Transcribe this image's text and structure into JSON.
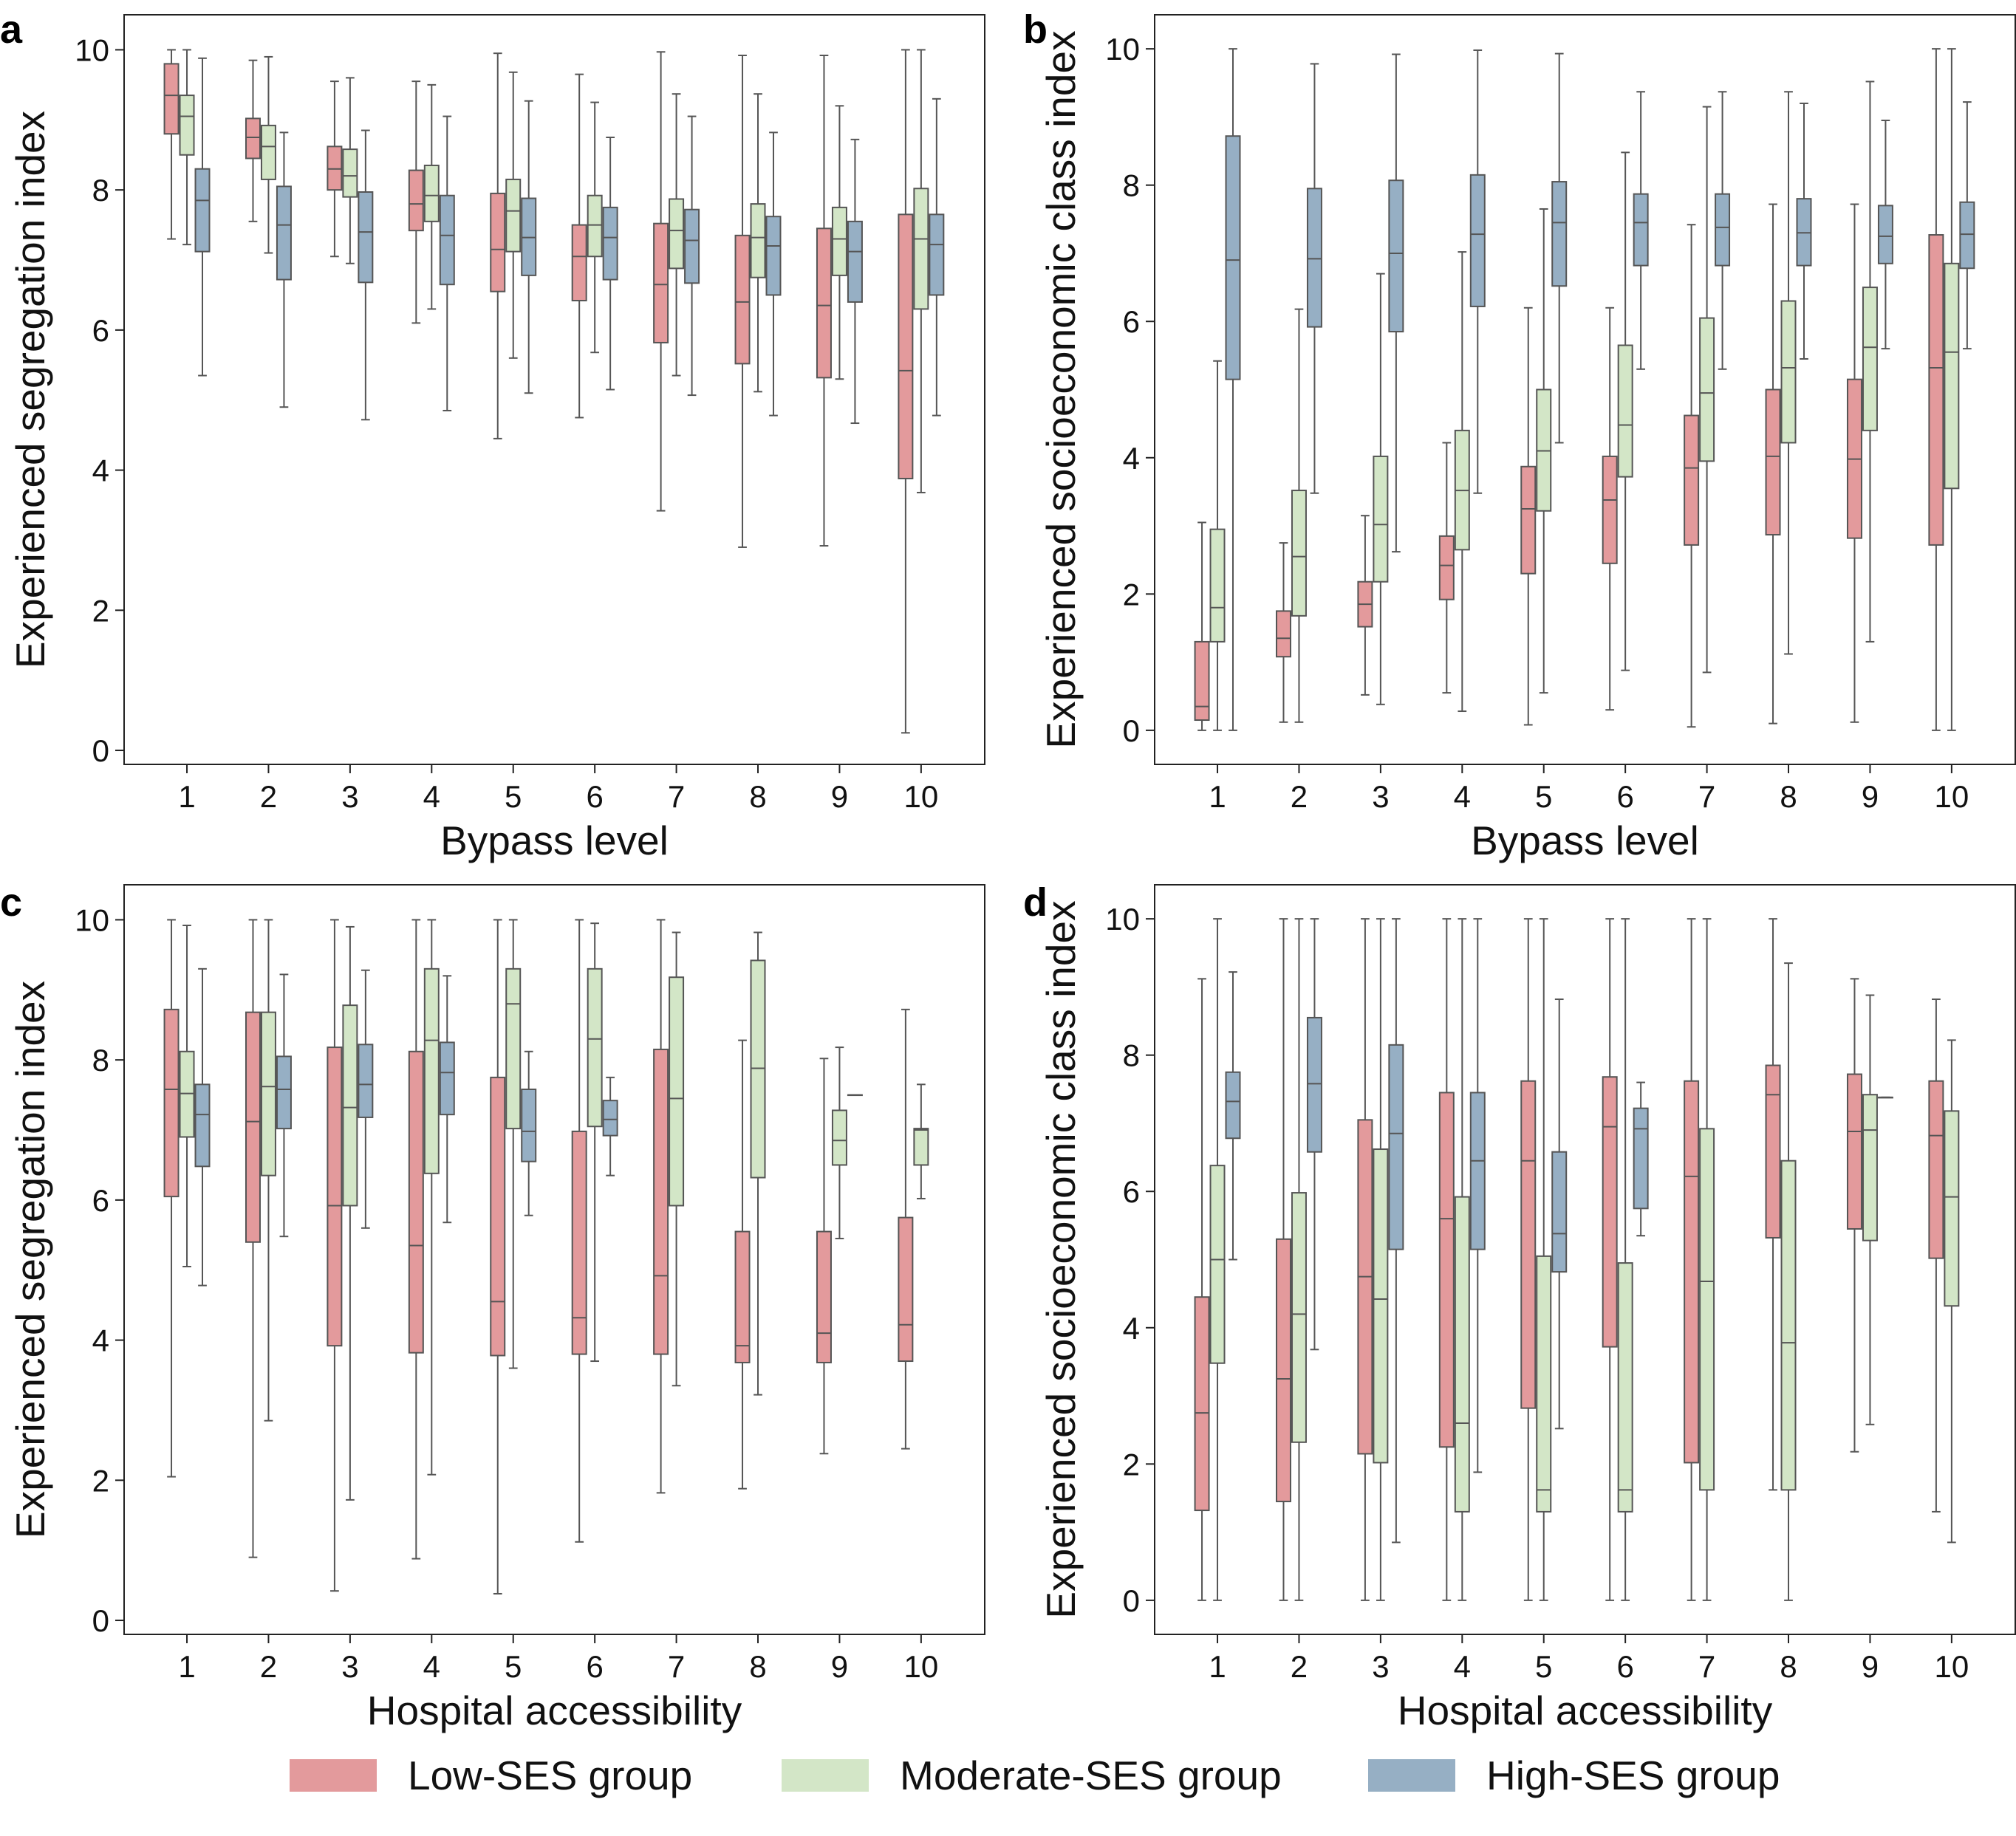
{
  "colors": {
    "low": "#e39a9c",
    "moderate": "#d3e6c7",
    "high": "#96afc4",
    "edge": "#555555"
  },
  "legend": [
    {
      "key": "low",
      "label": "Low-SES group"
    },
    {
      "key": "moderate",
      "label": "Moderate-SES group"
    },
    {
      "key": "high",
      "label": "High-SES group"
    }
  ],
  "chart_data": [
    {
      "panel": "a",
      "type": "box",
      "xlabel": "Bypass level",
      "ylabel": "Experienced segregation index",
      "ylim": [
        -0.2,
        10.5
      ],
      "yticks": [
        0,
        2,
        4,
        6,
        8,
        10
      ],
      "categories": [
        "1",
        "2",
        "3",
        "4",
        "5",
        "6",
        "7",
        "8",
        "9",
        "10"
      ],
      "series": [
        {
          "name": "Low-SES group",
          "key": "low",
          "boxes": [
            [
              7.3,
              8.8,
              9.35,
              9.8,
              10.0
            ],
            [
              7.55,
              8.45,
              8.75,
              9.02,
              9.85
            ],
            [
              7.05,
              8.0,
              8.3,
              8.62,
              9.55
            ],
            [
              6.1,
              7.42,
              7.8,
              8.28,
              9.55
            ],
            [
              4.45,
              6.55,
              7.15,
              7.95,
              9.95
            ],
            [
              4.75,
              6.42,
              7.05,
              7.5,
              9.65
            ],
            [
              3.42,
              5.82,
              6.65,
              7.52,
              9.97
            ],
            [
              2.9,
              5.52,
              6.4,
              7.35,
              9.92
            ],
            [
              2.92,
              5.32,
              6.35,
              7.45,
              9.92
            ],
            [
              0.25,
              3.88,
              5.42,
              7.65,
              10.0
            ]
          ]
        },
        {
          "name": "Moderate-SES group",
          "key": "moderate",
          "boxes": [
            [
              7.22,
              8.5,
              9.05,
              9.35,
              10.0
            ],
            [
              7.1,
              8.15,
              8.62,
              8.92,
              9.9
            ],
            [
              6.95,
              7.9,
              8.2,
              8.58,
              9.6
            ],
            [
              6.3,
              7.55,
              7.92,
              8.35,
              9.5
            ],
            [
              5.6,
              7.12,
              7.7,
              8.15,
              9.68
            ],
            [
              5.68,
              7.05,
              7.5,
              7.92,
              9.25
            ],
            [
              5.35,
              6.88,
              7.42,
              7.87,
              9.37
            ],
            [
              5.12,
              6.75,
              7.32,
              7.8,
              9.37
            ],
            [
              5.3,
              6.78,
              7.3,
              7.75,
              9.2
            ],
            [
              3.68,
              6.3,
              7.3,
              8.02,
              10.0
            ]
          ]
        },
        {
          "name": "High-SES group",
          "key": "high",
          "boxes": [
            [
              5.35,
              7.12,
              7.85,
              8.3,
              9.88
            ],
            [
              4.9,
              6.72,
              7.5,
              8.05,
              8.82
            ],
            [
              4.72,
              6.68,
              7.4,
              7.97,
              8.85
            ],
            [
              4.85,
              6.65,
              7.35,
              7.92,
              9.05
            ],
            [
              5.1,
              6.78,
              7.32,
              7.88,
              9.27
            ],
            [
              5.15,
              6.72,
              7.32,
              7.75,
              8.75
            ],
            [
              5.07,
              6.67,
              7.28,
              7.72,
              9.05
            ],
            [
              4.78,
              6.5,
              7.2,
              7.62,
              8.82
            ],
            [
              4.67,
              6.4,
              7.12,
              7.55,
              8.72
            ],
            [
              4.78,
              6.5,
              7.22,
              7.65,
              9.3
            ]
          ]
        }
      ]
    },
    {
      "panel": "b",
      "type": "box",
      "xlabel": "Bypass level",
      "ylabel": "Experienced socioeconomic class index",
      "ylim": [
        -0.5,
        10.5
      ],
      "yticks": [
        0,
        2,
        4,
        6,
        8,
        10
      ],
      "categories": [
        "1",
        "2",
        "3",
        "4",
        "5",
        "6",
        "7",
        "8",
        "9",
        "10"
      ],
      "series": [
        {
          "name": "Low-SES group",
          "key": "low",
          "boxes": [
            [
              0.0,
              0.15,
              0.35,
              1.3,
              3.05
            ],
            [
              0.12,
              1.08,
              1.35,
              1.75,
              2.75
            ],
            [
              0.52,
              1.52,
              1.85,
              2.18,
              3.15
            ],
            [
              0.55,
              1.92,
              2.42,
              2.85,
              4.22
            ],
            [
              0.08,
              2.3,
              3.25,
              3.87,
              6.2
            ],
            [
              0.3,
              2.45,
              3.38,
              4.02,
              6.2
            ],
            [
              0.05,
              2.72,
              3.85,
              4.62,
              7.42
            ],
            [
              0.1,
              2.87,
              4.02,
              5.0,
              7.72
            ],
            [
              0.12,
              2.82,
              3.98,
              5.15,
              7.72
            ],
            [
              0.0,
              2.72,
              5.32,
              7.27,
              10.0
            ]
          ]
        },
        {
          "name": "Moderate-SES group",
          "key": "moderate",
          "boxes": [
            [
              0.0,
              1.3,
              1.8,
              2.95,
              5.42
            ],
            [
              0.12,
              1.68,
              2.55,
              3.52,
              6.18
            ],
            [
              0.38,
              2.18,
              3.02,
              4.02,
              6.7
            ],
            [
              0.28,
              2.65,
              3.52,
              4.4,
              7.02
            ],
            [
              0.55,
              3.22,
              4.1,
              5.0,
              7.65
            ],
            [
              0.88,
              3.72,
              4.48,
              5.65,
              8.48
            ],
            [
              0.85,
              3.95,
              4.95,
              6.05,
              9.15
            ],
            [
              1.12,
              4.22,
              5.32,
              6.3,
              9.37
            ],
            [
              1.3,
              4.4,
              5.62,
              6.5,
              9.52
            ],
            [
              0.0,
              3.55,
              5.55,
              6.85,
              10.0
            ]
          ]
        },
        {
          "name": "High-SES group",
          "key": "high",
          "boxes": [
            [
              0.0,
              5.15,
              6.9,
              8.72,
              10.0
            ],
            [
              3.48,
              5.92,
              6.92,
              7.95,
              9.78
            ],
            [
              2.62,
              5.85,
              7.0,
              8.07,
              9.92
            ],
            [
              3.48,
              6.22,
              7.28,
              8.15,
              9.98
            ],
            [
              4.22,
              6.52,
              7.45,
              8.05,
              9.93
            ],
            [
              5.3,
              6.82,
              7.45,
              7.87,
              9.37
            ],
            [
              5.3,
              6.82,
              7.38,
              7.87,
              9.37
            ],
            [
              5.45,
              6.82,
              7.3,
              7.8,
              9.2
            ],
            [
              5.6,
              6.85,
              7.25,
              7.7,
              8.95
            ],
            [
              5.6,
              6.78,
              7.28,
              7.75,
              9.22
            ]
          ]
        }
      ]
    },
    {
      "panel": "c",
      "type": "box",
      "xlabel": "Hospital accessibility",
      "ylabel": "Experienced segregation index",
      "ylim": [
        -0.2,
        10.5
      ],
      "yticks": [
        0,
        2,
        4,
        6,
        8,
        10
      ],
      "categories": [
        "1",
        "2",
        "3",
        "4",
        "5",
        "6",
        "7",
        "8",
        "9",
        "10"
      ],
      "series": [
        {
          "name": "Low-SES group",
          "key": "low",
          "boxes": [
            [
              2.05,
              6.05,
              7.58,
              8.72,
              10.0
            ],
            [
              0.9,
              5.4,
              7.12,
              8.68,
              10.0
            ],
            [
              0.42,
              3.92,
              5.92,
              8.18,
              10.0
            ],
            [
              0.88,
              3.82,
              5.35,
              8.12,
              10.0
            ],
            [
              0.38,
              3.78,
              4.55,
              7.75,
              10.0
            ],
            [
              1.12,
              3.8,
              4.32,
              6.98,
              10.0
            ],
            [
              1.82,
              3.8,
              4.92,
              8.15,
              10.0
            ],
            [
              1.88,
              3.68,
              3.92,
              5.55,
              8.28
            ],
            [
              2.38,
              3.68,
              4.1,
              5.55,
              8.02
            ],
            [
              2.45,
              3.7,
              4.22,
              5.75,
              8.72
            ]
          ]
        },
        {
          "name": "Moderate-SES group",
          "key": "moderate",
          "boxes": [
            [
              5.05,
              6.9,
              7.52,
              8.12,
              9.92
            ],
            [
              2.85,
              6.35,
              7.62,
              8.68,
              10.0
            ],
            [
              1.72,
              5.92,
              7.32,
              8.78,
              9.9
            ],
            [
              2.08,
              6.38,
              8.28,
              9.3,
              10.0
            ],
            [
              3.6,
              7.02,
              8.8,
              9.3,
              10.0
            ],
            [
              3.7,
              7.05,
              8.3,
              9.3,
              9.95
            ],
            [
              3.35,
              5.92,
              7.45,
              9.18,
              9.82
            ],
            [
              3.22,
              6.32,
              7.88,
              9.42,
              9.82
            ],
            [
              5.45,
              6.5,
              6.85,
              7.28,
              8.18
            ],
            [
              6.02,
              6.5,
              7.0,
              7.02,
              7.65
            ]
          ]
        },
        {
          "name": "High-SES group",
          "key": "high",
          "boxes": [
            [
              4.78,
              6.48,
              7.22,
              7.65,
              9.3
            ],
            [
              5.48,
              7.02,
              7.58,
              8.05,
              9.22
            ],
            [
              5.6,
              7.18,
              7.65,
              8.22,
              9.28
            ],
            [
              5.68,
              7.22,
              7.82,
              8.25,
              9.2
            ],
            [
              5.78,
              6.55,
              6.98,
              7.58,
              8.12
            ],
            [
              6.35,
              6.92,
              7.15,
              7.42,
              7.75
            ],
            null,
            null,
            [
              7.5,
              7.5,
              7.5,
              7.5,
              7.5
            ],
            null
          ]
        }
      ]
    },
    {
      "panel": "d",
      "type": "box",
      "xlabel": "Hospital accessibility",
      "ylabel": "Experienced socioeconomic class index",
      "ylim": [
        -0.5,
        10.5
      ],
      "yticks": [
        0,
        2,
        4,
        6,
        8,
        10
      ],
      "categories": [
        "1",
        "2",
        "3",
        "4",
        "5",
        "6",
        "7",
        "8",
        "9",
        "10"
      ],
      "series": [
        {
          "name": "Low-SES group",
          "key": "low",
          "boxes": [
            [
              0.0,
              1.32,
              2.75,
              4.45,
              9.12
            ],
            [
              0.0,
              1.45,
              3.25,
              5.3,
              10.0
            ],
            [
              0.0,
              2.15,
              4.75,
              7.05,
              10.0
            ],
            [
              0.0,
              2.25,
              5.6,
              7.45,
              10.0
            ],
            [
              0.0,
              2.82,
              6.45,
              7.62,
              10.0
            ],
            [
              0.0,
              3.72,
              6.95,
              7.68,
              10.0
            ],
            [
              0.0,
              2.02,
              6.22,
              7.62,
              10.0
            ],
            [
              1.62,
              5.32,
              7.42,
              7.85,
              10.0
            ],
            [
              2.18,
              5.45,
              6.88,
              7.72,
              9.12
            ],
            [
              1.3,
              5.02,
              6.82,
              7.62,
              8.82
            ]
          ]
        },
        {
          "name": "Moderate-SES group",
          "key": "moderate",
          "boxes": [
            [
              0.0,
              3.48,
              5.0,
              6.38,
              10.0
            ],
            [
              0.0,
              2.32,
              4.2,
              5.98,
              10.0
            ],
            [
              0.0,
              2.02,
              4.42,
              6.62,
              10.0
            ],
            [
              0.0,
              1.3,
              2.6,
              5.92,
              10.0
            ],
            [
              0.0,
              1.3,
              1.62,
              5.05,
              10.0
            ],
            [
              0.0,
              1.3,
              1.62,
              4.95,
              10.0
            ],
            [
              0.0,
              1.62,
              4.68,
              6.92,
              10.0
            ],
            [
              0.0,
              1.62,
              3.78,
              6.45,
              9.35
            ],
            [
              2.58,
              5.28,
              6.9,
              7.42,
              8.88
            ],
            [
              0.85,
              4.32,
              5.92,
              7.18,
              8.22
            ]
          ]
        },
        {
          "name": "High-SES group",
          "key": "high",
          "boxes": [
            [
              5.0,
              6.78,
              7.32,
              7.75,
              9.22
            ],
            [
              3.68,
              6.58,
              7.58,
              8.55,
              10.0
            ],
            [
              0.85,
              5.15,
              6.85,
              8.15,
              10.0
            ],
            [
              1.88,
              5.15,
              6.45,
              7.45,
              10.0
            ],
            [
              2.52,
              4.82,
              5.38,
              6.58,
              8.82
            ],
            [
              5.35,
              5.75,
              6.92,
              7.22,
              7.6
            ],
            null,
            null,
            [
              7.38,
              7.38,
              7.38,
              7.38,
              7.38
            ],
            null
          ]
        }
      ]
    }
  ]
}
